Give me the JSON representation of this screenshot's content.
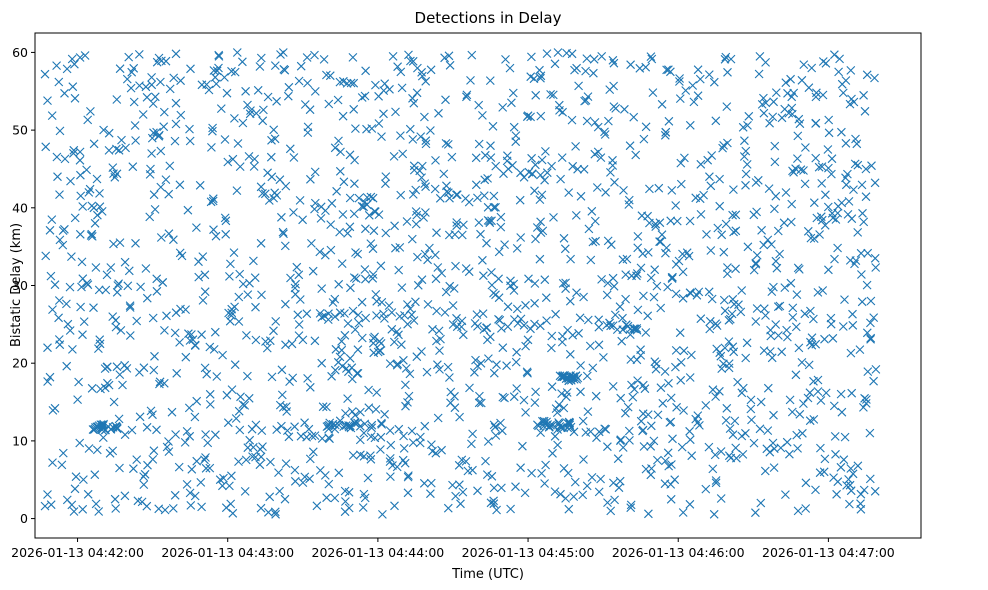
{
  "chart_data": {
    "type": "scatter",
    "title": "Detections in Delay",
    "xlabel": "Time (UTC)",
    "ylabel": "Bistatic Delay (km)",
    "marker": "x",
    "color": "#1f77b4",
    "grid": false,
    "xlim_seconds": [
      -17,
      337
    ],
    "ylim": [
      -2.5,
      62.5
    ],
    "x_ticks": [
      {
        "value": 0,
        "label": "2026-01-13 04:42:00"
      },
      {
        "value": 60,
        "label": "2026-01-13 04:43:00"
      },
      {
        "value": 120,
        "label": "2026-01-13 04:44:00"
      },
      {
        "value": 180,
        "label": "2026-01-13 04:45:00"
      },
      {
        "value": 240,
        "label": "2026-01-13 04:46:00"
      },
      {
        "value": 300,
        "label": "2026-01-13 04:47:00"
      }
    ],
    "y_ticks": [
      0,
      10,
      20,
      30,
      40,
      50,
      60
    ],
    "series": [
      {
        "name": "detections",
        "approximate_count": 1900,
        "time_range_seconds": [
          -13,
          319
        ],
        "delay_range_km": [
          0.5,
          60
        ],
        "features": [
          {
            "t_start": 6,
            "t_end": 16,
            "delay": 11.8,
            "label": "cluster"
          },
          {
            "t_start": 98,
            "t_end": 122,
            "delay": 11.9,
            "label": "cluster"
          },
          {
            "t_start": 184,
            "t_end": 198,
            "delay": 12.1,
            "label": "cluster"
          },
          {
            "t_start": 88,
            "t_end": 135,
            "delay": 26.0,
            "label": "streak"
          },
          {
            "t_start": 150,
            "t_end": 185,
            "delay": 25.2,
            "label": "streak"
          },
          {
            "t_start": 208,
            "t_end": 225,
            "delay": 24.6,
            "label": "streak"
          },
          {
            "t_start": 192,
            "t_end": 200,
            "delay": 18.0,
            "label": "cluster"
          }
        ],
        "points": [
          [
            -13,
            57.2
          ],
          [
            -12,
            53.8
          ],
          [
            -11,
            37.1
          ],
          [
            -10,
            26.9
          ],
          [
            -12,
            22.0
          ],
          [
            -11,
            18.2
          ],
          [
            -10,
            7.2
          ],
          [
            -12,
            3.1
          ],
          [
            -13,
            1.6
          ],
          [
            -9,
            14.2
          ],
          [
            -9,
            30.1
          ],
          [
            -8,
            44.0
          ],
          [
            -7,
            49.9
          ],
          [
            -5,
            46.3
          ],
          [
            -3,
            29.8
          ],
          [
            -1,
            54.1
          ],
          [
            1,
            47.2
          ],
          [
            3,
            59.6
          ],
          [
            5,
            42.4
          ],
          [
            7,
            38.0
          ],
          [
            9,
            22.5
          ],
          [
            11,
            19.3
          ],
          [
            13,
            8.4
          ],
          [
            15,
            2.5
          ],
          [
            17,
            57.9
          ],
          [
            19,
            33.0
          ],
          [
            21,
            27.4
          ],
          [
            23,
            50.6
          ],
          [
            25,
            13.1
          ],
          [
            27,
            5.7
          ],
          [
            29,
            44.3
          ],
          [
            31,
            39.8
          ],
          [
            33,
            17.6
          ],
          [
            35,
            1.1
          ],
          [
            37,
            55.3
          ],
          [
            39,
            23.9
          ],
          [
            41,
            34.2
          ],
          [
            43,
            9.8
          ],
          [
            45,
            48.6
          ],
          [
            47,
            2.9
          ],
          [
            49,
            42.9
          ],
          [
            51,
            29.2
          ],
          [
            53,
            16.0
          ],
          [
            55,
            56.8
          ],
          [
            57,
            5.0
          ],
          [
            59,
            38.7
          ],
          [
            61,
            25.4
          ],
          [
            63,
            19.8
          ],
          [
            65,
            45.3
          ],
          [
            67,
            3.5
          ],
          [
            69,
            52.1
          ],
          [
            71,
            31.0
          ],
          [
            73,
            8.9
          ],
          [
            75,
            41.8
          ],
          [
            77,
            22.9
          ],
          [
            79,
            58.3
          ],
          [
            81,
            14.6
          ],
          [
            83,
            35.1
          ],
          [
            85,
            47.6
          ],
          [
            87,
            4.8
          ],
          [
            89,
            28.2
          ],
          [
            91,
            53.3
          ],
          [
            93,
            16.9
          ],
          [
            95,
            40.6
          ],
          [
            97,
            6.2
          ],
          [
            99,
            33.9
          ],
          [
            101,
            57.0
          ],
          [
            103,
            19.1
          ],
          [
            105,
            44.7
          ],
          [
            107,
            2.2
          ],
          [
            109,
            29.7
          ],
          [
            111,
            50.2
          ],
          [
            113,
            13.7
          ],
          [
            115,
            37.3
          ],
          [
            117,
            8.1
          ],
          [
            119,
            55.8
          ],
          [
            121,
            21.6
          ],
          [
            123,
            43.1
          ],
          [
            125,
            5.4
          ],
          [
            127,
            34.8
          ],
          [
            129,
            49.3
          ],
          [
            131,
            17.2
          ],
          [
            133,
            58.9
          ],
          [
            135,
            27.9
          ],
          [
            137,
            10.5
          ],
          [
            139,
            39.4
          ],
          [
            141,
            3.2
          ],
          [
            143,
            46.1
          ],
          [
            145,
            23.1
          ],
          [
            147,
            53.9
          ],
          [
            149,
            14.9
          ],
          [
            151,
            32.5
          ],
          [
            153,
            1.9
          ],
          [
            155,
            41.2
          ],
          [
            157,
            56.4
          ],
          [
            159,
            20.4
          ],
          [
            161,
            36.6
          ],
          [
            163,
            7.4
          ],
          [
            165,
            48.0
          ],
          [
            167,
            28.8
          ],
          [
            169,
            12.3
          ],
          [
            171,
            59.1
          ],
          [
            173,
            30.6
          ],
          [
            175,
            4.1
          ],
          [
            177,
            44.5
          ],
          [
            179,
            22.2
          ],
          [
            181,
            51.7
          ],
          [
            183,
            16.3
          ],
          [
            185,
            38.2
          ],
          [
            187,
            6.9
          ],
          [
            189,
            54.6
          ],
          [
            191,
            26.3
          ],
          [
            193,
            43.7
          ],
          [
            195,
            2.6
          ],
          [
            197,
            33.4
          ],
          [
            199,
            47.9
          ],
          [
            201,
            19.7
          ],
          [
            203,
            57.6
          ],
          [
            205,
            11.2
          ],
          [
            207,
            35.7
          ],
          [
            209,
            5.1
          ],
          [
            211,
            42.0
          ],
          [
            213,
            24.8
          ],
          [
            215,
            52.8
          ],
          [
            217,
            15.5
          ],
          [
            219,
            31.4
          ],
          [
            221,
            1.4
          ],
          [
            223,
            46.8
          ],
          [
            225,
            21.0
          ],
          [
            227,
            58.1
          ],
          [
            229,
            9.3
          ],
          [
            231,
            37.9
          ],
          [
            233,
            27.1
          ],
          [
            235,
            49.7
          ],
          [
            237,
            4.4
          ],
          [
            239,
            40.3
          ],
          [
            241,
            17.8
          ],
          [
            243,
            55.1
          ],
          [
            245,
            29.0
          ],
          [
            247,
            12.8
          ],
          [
            249,
            45.6
          ],
          [
            251,
            3.8
          ],
          [
            253,
            34.5
          ],
          [
            255,
            51.2
          ],
          [
            257,
            20.9
          ],
          [
            259,
            59.4
          ],
          [
            261,
            7.8
          ],
          [
            263,
            39.1
          ],
          [
            265,
            26.6
          ],
          [
            267,
            47.3
          ],
          [
            269,
            14.1
          ],
          [
            271,
            32.9
          ],
          [
            273,
            2.0
          ],
          [
            275,
            53.5
          ],
          [
            277,
            23.5
          ],
          [
            279,
            41.5
          ],
          [
            281,
            9.1
          ],
          [
            283,
            56.1
          ],
          [
            285,
            30.3
          ],
          [
            287,
            18.5
          ],
          [
            289,
            44.9
          ],
          [
            291,
            4.6
          ],
          [
            293,
            36.1
          ],
          [
            295,
            50.9
          ],
          [
            297,
            15.2
          ],
          [
            299,
            58.6
          ],
          [
            301,
            25.8
          ],
          [
            303,
            38.5
          ],
          [
            305,
            6.6
          ],
          [
            307,
            48.3
          ],
          [
            309,
            21.3
          ],
          [
            311,
            33.2
          ],
          [
            313,
            1.2
          ],
          [
            315,
            45.0
          ],
          [
            317,
            28.0
          ],
          [
            319,
            19.2
          ]
        ]
      }
    ]
  }
}
